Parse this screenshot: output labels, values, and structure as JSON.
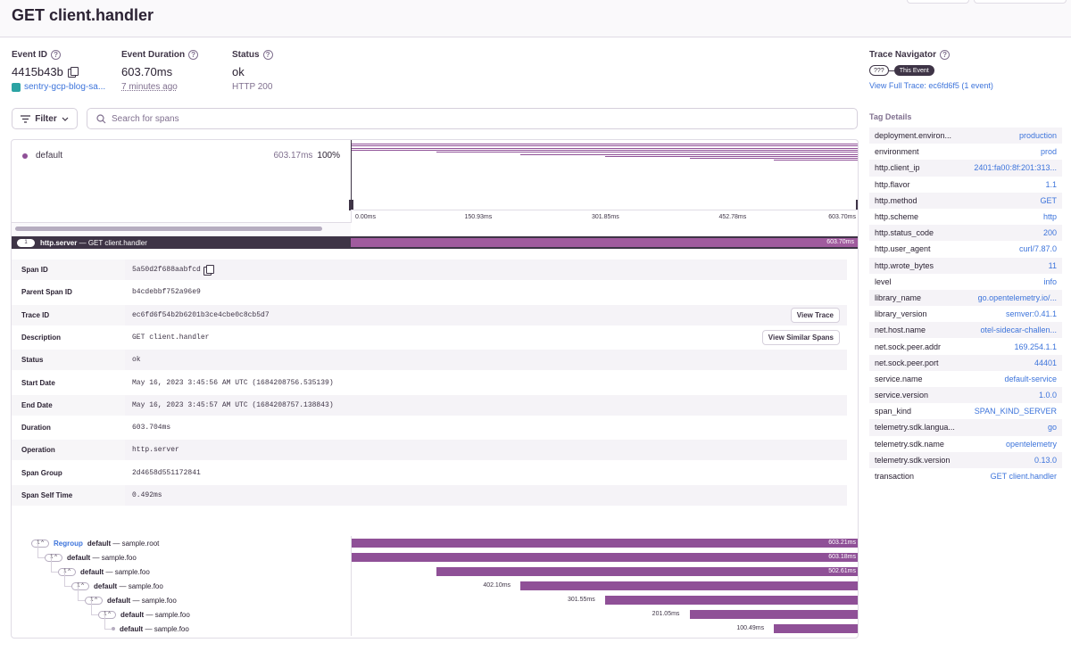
{
  "page_title": "GET client.handler",
  "event": {
    "id_label": "Event ID",
    "id_value": "4415b43b",
    "project": "sentry-gcp-blog-sa...",
    "duration_label": "Event Duration",
    "duration_value": "603.70ms",
    "time_ago": "7 minutes ago",
    "status_label": "Status",
    "status_value": "ok",
    "status_sub": "HTTP 200"
  },
  "filter": {
    "label": "Filter",
    "search_placeholder": "Search for spans"
  },
  "minimap": {
    "op_name": "default",
    "op_duration": "603.17ms",
    "op_percent": "100%",
    "ticks": [
      "0.00ms",
      "150.93ms",
      "301.85ms",
      "452.78ms",
      "603.70ms"
    ],
    "bars": [
      0,
      0,
      0,
      0,
      0.1667,
      0.3333,
      0.5,
      0.6667,
      0.8334
    ]
  },
  "selected_span": {
    "count": "1",
    "op": "http.server",
    "desc": "GET client.handler",
    "duration": "603.70ms"
  },
  "span_details": {
    "rows": [
      {
        "key": "Span ID",
        "value": "5a50d2f688aabfcd"
      },
      {
        "key": "Parent Span ID",
        "value": "b4cdebbf752a96e9"
      },
      {
        "key": "Trace ID",
        "value": "ec6fd6f54b2b6201b3ce4cbe0c8cb5d7",
        "button": "View Trace"
      },
      {
        "key": "Description",
        "value": "GET client.handler",
        "button": "View Similar Spans"
      },
      {
        "key": "Status",
        "value": "ok"
      },
      {
        "key": "Start Date",
        "value": "May 16, 2023 3:45:56 AM UTC (1684208756.535139)"
      },
      {
        "key": "End Date",
        "value": "May 16, 2023 3:45:57 AM UTC (1684208757.138843)"
      },
      {
        "key": "Duration",
        "value": "603.704ms"
      },
      {
        "key": "Operation",
        "value": "http.server"
      },
      {
        "key": "Span Group",
        "value": "2d4658d551172841"
      },
      {
        "key": "Span Self Time",
        "value": "0.492ms"
      }
    ]
  },
  "span_tree": {
    "regroup_label": "Regroup",
    "rows": [
      {
        "count": "1",
        "op": "default",
        "desc": "sample.root",
        "duration": "603.21ms",
        "start": 0,
        "width": 1,
        "label_inside": true,
        "regroup": true
      },
      {
        "count": "1",
        "op": "default",
        "desc": "sample.foo",
        "duration": "603.18ms",
        "start": 0,
        "width": 1,
        "label_inside": true
      },
      {
        "count": "1",
        "op": "default",
        "desc": "sample.foo",
        "duration": "502.61ms",
        "start": 0.1667,
        "width": 0.8333,
        "label_inside": true
      },
      {
        "count": "1",
        "op": "default",
        "desc": "sample.foo",
        "duration": "402.10ms",
        "start": 0.3333,
        "width": 0.6667,
        "label_inside": false
      },
      {
        "count": "1",
        "op": "default",
        "desc": "sample.foo",
        "duration": "301.55ms",
        "start": 0.5,
        "width": 0.5,
        "label_inside": false
      },
      {
        "count": "1",
        "op": "default",
        "desc": "sample.foo",
        "duration": "201.05ms",
        "start": 0.6667,
        "width": 0.3333,
        "label_inside": false
      },
      {
        "count": "",
        "op": "default",
        "desc": "sample.foo",
        "duration": "100.49ms",
        "start": 0.8334,
        "width": 0.1666,
        "label_inside": false
      }
    ]
  },
  "sidebar": {
    "trace_nav_label": "Trace Navigator",
    "chip_unknown": "???",
    "chip_this": "This Event",
    "full_trace": "View Full Trace: ec6fd6f5 (1 event)",
    "tag_title": "Tag Details",
    "tags": [
      {
        "k": "deployment.environ...",
        "v": "production"
      },
      {
        "k": "environment",
        "v": "prod"
      },
      {
        "k": "http.client_ip",
        "v": "2401:fa00:8f:201:313..."
      },
      {
        "k": "http.flavor",
        "v": "1.1"
      },
      {
        "k": "http.method",
        "v": "GET"
      },
      {
        "k": "http.scheme",
        "v": "http"
      },
      {
        "k": "http.status_code",
        "v": "200"
      },
      {
        "k": "http.user_agent",
        "v": "curl/7.87.0"
      },
      {
        "k": "http.wrote_bytes",
        "v": "11"
      },
      {
        "k": "level",
        "v": "info"
      },
      {
        "k": "library_name",
        "v": "go.opentelemetry.io/..."
      },
      {
        "k": "library_version",
        "v": "semver:0.41.1"
      },
      {
        "k": "net.host.name",
        "v": "otel-sidecar-challen..."
      },
      {
        "k": "net.sock.peer.addr",
        "v": "169.254.1.1"
      },
      {
        "k": "net.sock.peer.port",
        "v": "44401"
      },
      {
        "k": "service.name",
        "v": "default-service"
      },
      {
        "k": "service.version",
        "v": "1.0.0"
      },
      {
        "k": "span_kind",
        "v": "SPAN_KIND_SERVER"
      },
      {
        "k": "telemetry.sdk.langua...",
        "v": "go"
      },
      {
        "k": "telemetry.sdk.name",
        "v": "opentelemetry"
      },
      {
        "k": "telemetry.sdk.version",
        "v": "0.13.0"
      },
      {
        "k": "transaction",
        "v": "GET client.handler"
      }
    ]
  },
  "colors": {
    "span": "#8f5097",
    "selected_span": "#a05b9e",
    "link": "#3d74db",
    "dark": "#3e3446"
  }
}
